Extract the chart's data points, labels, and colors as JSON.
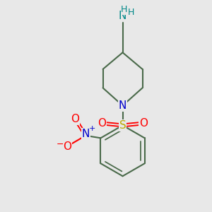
{
  "bg_color": "#e8e8e8",
  "bond_color": "#4a6a4a",
  "bond_width": 1.5,
  "atom_colors": {
    "N_blue": "#0000cc",
    "N_teal": "#008888",
    "O_red": "#ff0000",
    "S_yellow": "#bbaa00",
    "H_teal": "#008888"
  },
  "figsize": [
    3.0,
    3.0
  ],
  "dpi": 100,
  "xlim": [
    0,
    10
  ],
  "ylim": [
    0,
    10
  ]
}
